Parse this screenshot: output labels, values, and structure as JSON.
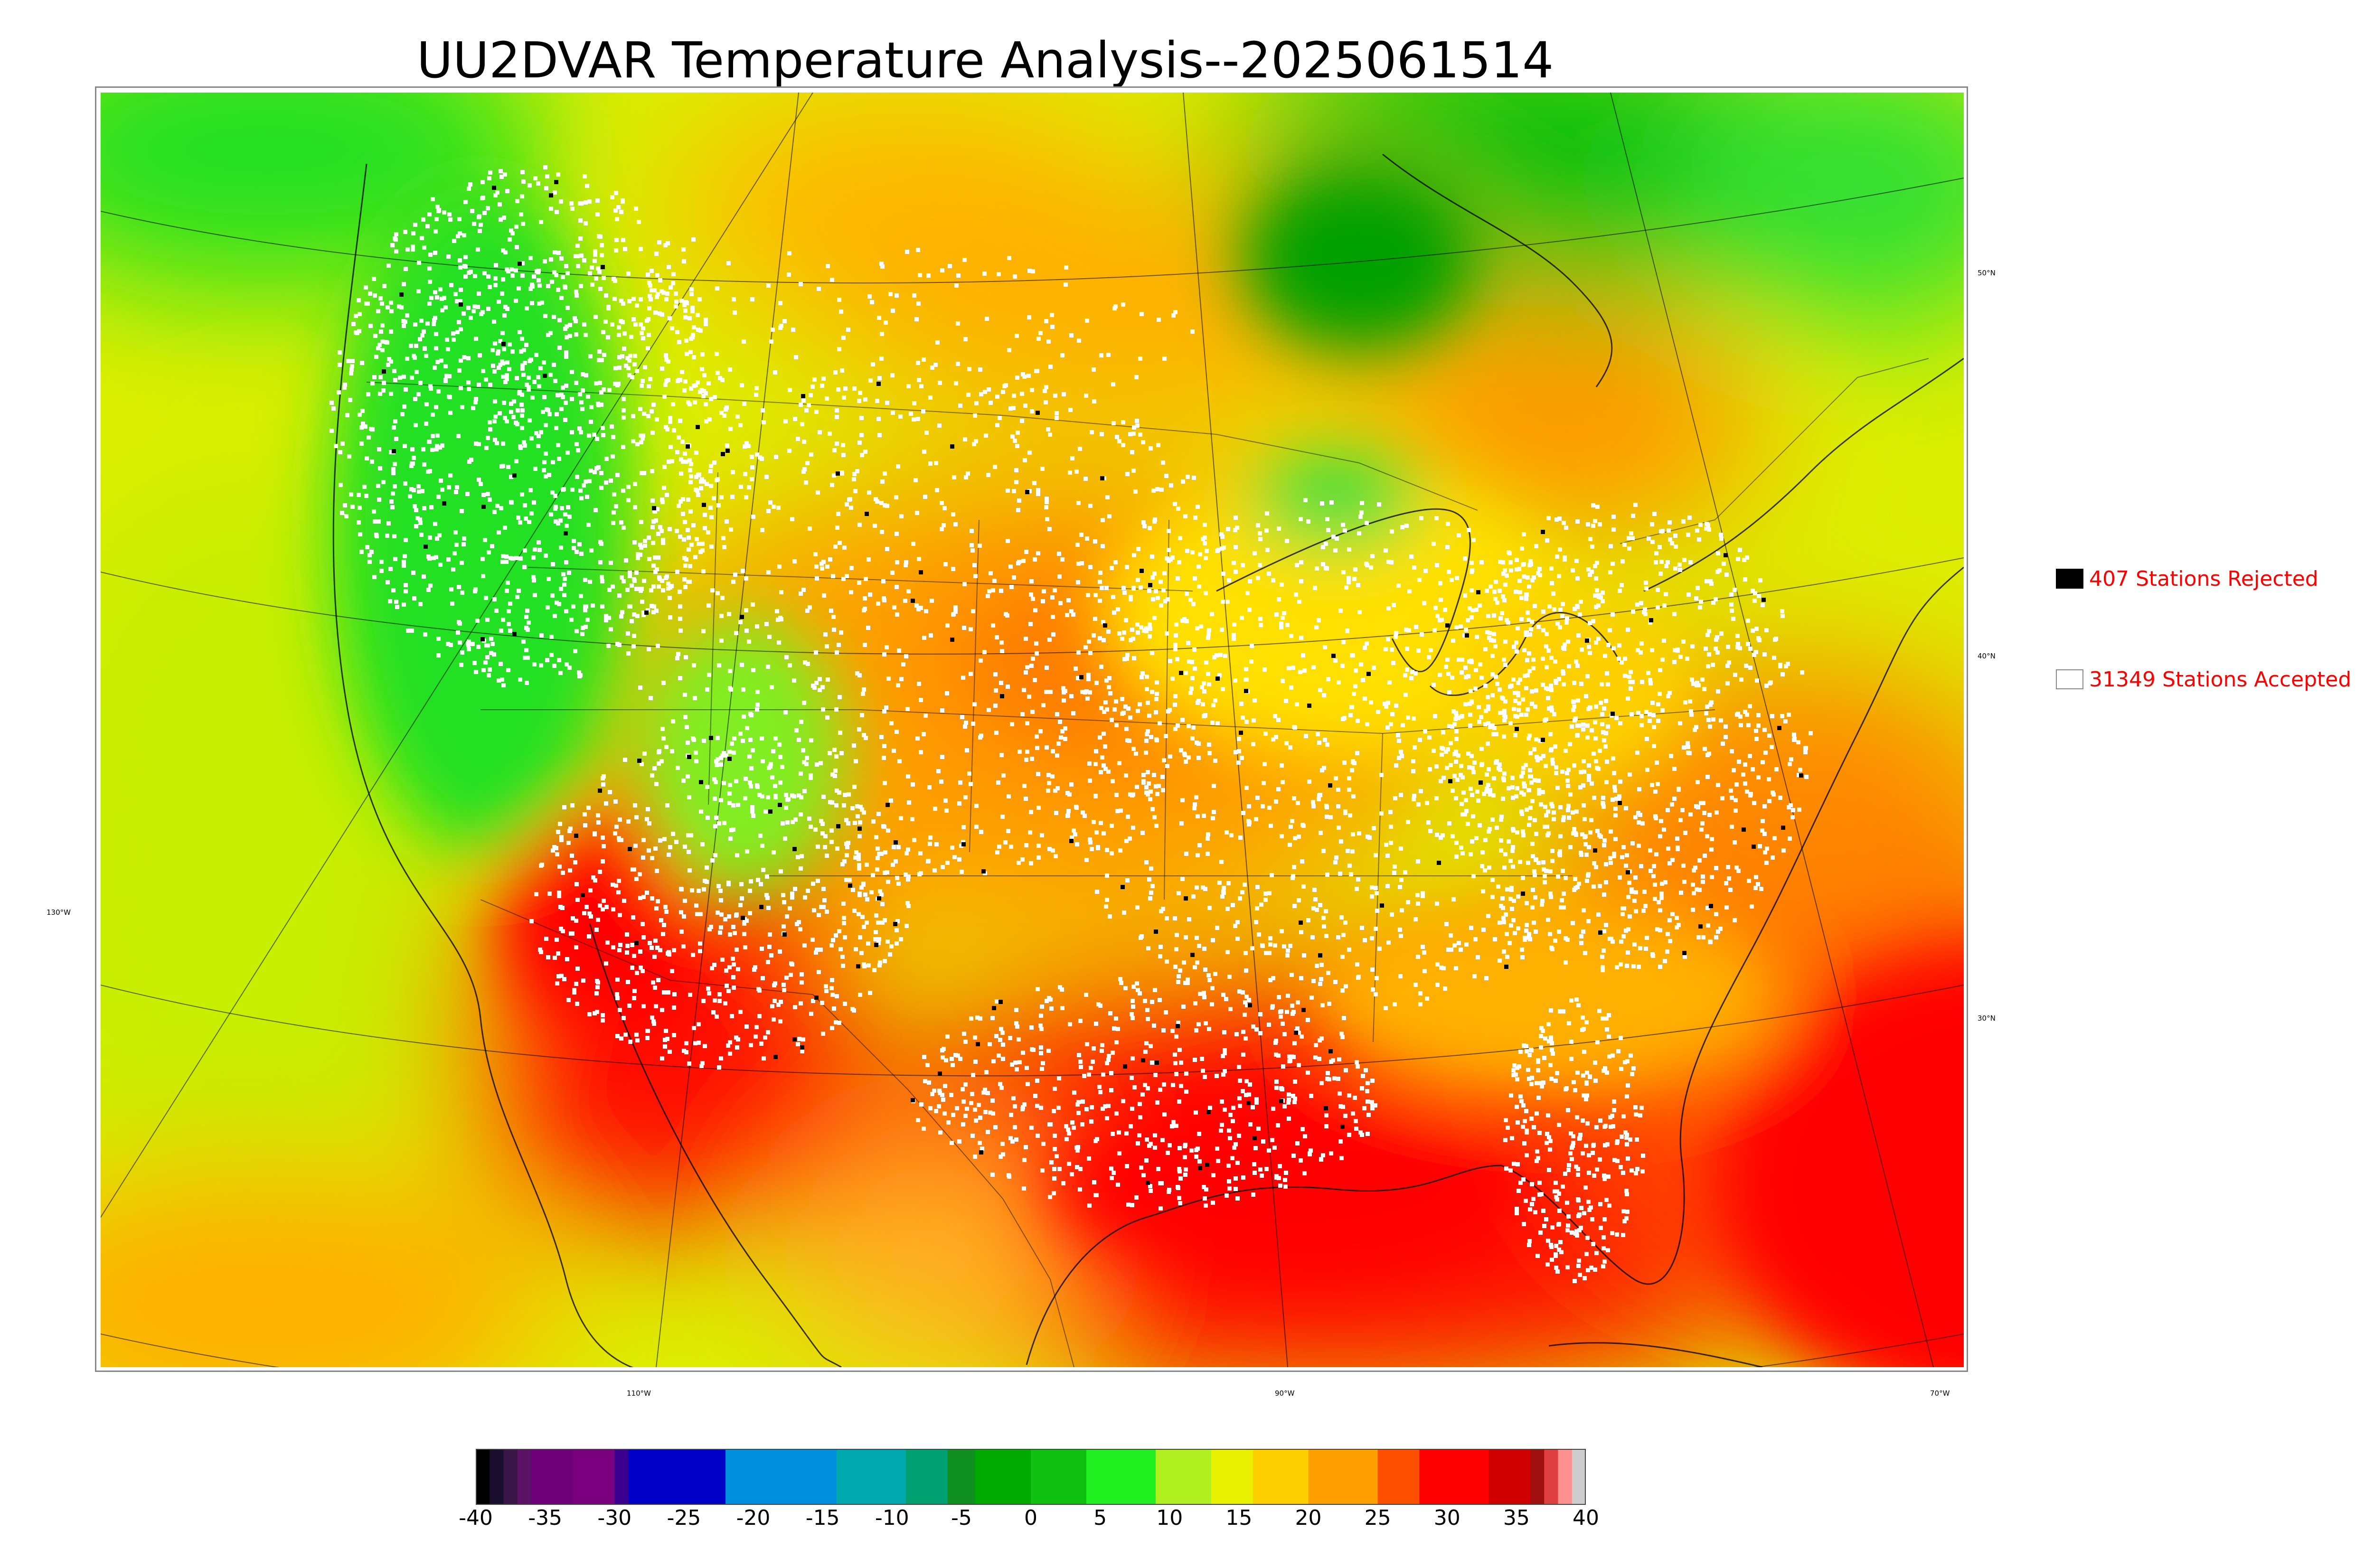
{
  "title": "UU2DVAR Temperature Analysis--2025061514",
  "map": {
    "graticule_labels": {
      "lat": [
        "50°N",
        "40°N",
        "30°N"
      ],
      "lon": [
        "130°W",
        "110°W",
        "90°W",
        "70°W"
      ]
    }
  },
  "legend": {
    "rejected": {
      "label": "407 Stations Rejected",
      "color": "#000000"
    },
    "accepted": {
      "label": "31349 Stations Accepted",
      "color": "#ffffff"
    }
  },
  "colorbar": {
    "ticks": [
      "-40",
      "-35",
      "-30",
      "-25",
      "-20",
      "-15",
      "-10",
      "-5",
      "0",
      "5",
      "10",
      "15",
      "20",
      "25",
      "30",
      "35",
      "40"
    ],
    "range": [
      -40,
      40
    ],
    "colors": [
      {
        "from": -40,
        "to": -39,
        "color": "#000000"
      },
      {
        "from": -39,
        "to": -38,
        "color": "#1a0f2e"
      },
      {
        "from": -38,
        "to": -37,
        "color": "#3a1548"
      },
      {
        "from": -37,
        "to": -36,
        "color": "#5c1265"
      },
      {
        "from": -36,
        "to": -33,
        "color": "#6f007a"
      },
      {
        "from": -33,
        "to": -30,
        "color": "#7a0080"
      },
      {
        "from": -30,
        "to": -29,
        "color": "#3b0090"
      },
      {
        "from": -29,
        "to": -22,
        "color": "#0000c8"
      },
      {
        "from": -22,
        "to": -14,
        "color": "#0090e0"
      },
      {
        "from": -14,
        "to": -9,
        "color": "#00a8b0"
      },
      {
        "from": -9,
        "to": -6,
        "color": "#00a070"
      },
      {
        "from": -6,
        "to": -4,
        "color": "#109020"
      },
      {
        "from": -4,
        "to": 0,
        "color": "#00aa00"
      },
      {
        "from": 0,
        "to": 4,
        "color": "#10c010"
      },
      {
        "from": 4,
        "to": 9,
        "color": "#20f020"
      },
      {
        "from": 9,
        "to": 13,
        "color": "#b0f020"
      },
      {
        "from": 13,
        "to": 16,
        "color": "#e8f000"
      },
      {
        "from": 16,
        "to": 20,
        "color": "#ffd000"
      },
      {
        "from": 20,
        "to": 25,
        "color": "#ffa000"
      },
      {
        "from": 25,
        "to": 28,
        "color": "#ff5000"
      },
      {
        "from": 28,
        "to": 33,
        "color": "#ff0000"
      },
      {
        "from": 33,
        "to": 36,
        "color": "#d00000"
      },
      {
        "from": 36,
        "to": 37,
        "color": "#a01010"
      },
      {
        "from": 37,
        "to": 38,
        "color": "#e04040"
      },
      {
        "from": 38,
        "to": 39,
        "color": "#ff9090"
      },
      {
        "from": 39,
        "to": 40,
        "color": "#cccccc"
      }
    ]
  },
  "colors": {
    "cold": "#00b000",
    "mild": "#c8f000",
    "warm": "#ffa000",
    "hot": "#ff1000",
    "station_accepted": "#ffffff",
    "station_rejected": "#000000",
    "legend_text": "#ff0000"
  }
}
